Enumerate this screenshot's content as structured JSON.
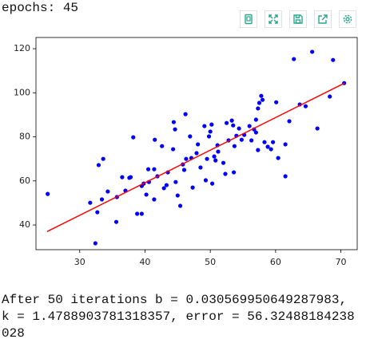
{
  "header": "epochs: 45",
  "chart_data": {
    "type": "scatter",
    "x": [
      25.1,
      32.4,
      32.7,
      31.6,
      32.9,
      33.6,
      33.4,
      34.3,
      35.6,
      35.7,
      36.5,
      37.0,
      37.6,
      37.8,
      38.2,
      38.8,
      39.5,
      39.5,
      39.8,
      40.2,
      40.5,
      40.6,
      41.4,
      41.4,
      41.5,
      41.9,
      42.6,
      42.9,
      43.3,
      43.5,
      44.3,
      44.4,
      44.6,
      44.7,
      45.0,
      45.4,
      45.8,
      46.0,
      46.2,
      46.3,
      46.9,
      47.1,
      47.3,
      47.9,
      48.1,
      48.5,
      49.1,
      49.5,
      49.3,
      49.8,
      50.0,
      50.2,
      50.3,
      50.6,
      50.8,
      51.2,
      51.1,
      52.0,
      52.3,
      52.5,
      52.8,
      53.3,
      53.5,
      53.6,
      53.7,
      54.0,
      54.4,
      54.8,
      55.2,
      56.0,
      56.3,
      56.7,
      57.0,
      57.0,
      57.3,
      57.3,
      57.5,
      57.8,
      58.0,
      58.3,
      58.8,
      59.3,
      59.6,
      60.1,
      60.4,
      61.5,
      61.5,
      62.1,
      62.8,
      63.7,
      64.6,
      65.6,
      66.4,
      68.3,
      68.8,
      70.5
    ],
    "values": [
      54.1,
      31.7,
      45.8,
      50.1,
      67.2,
      70.0,
      51.6,
      55.2,
      41.4,
      52.7,
      61.7,
      55.6,
      61.4,
      61.7,
      79.8,
      45.1,
      45.1,
      57.7,
      58.8,
      53.8,
      65.3,
      59.5,
      51.6,
      65.3,
      78.7,
      62.1,
      75.8,
      56.7,
      58.1,
      63.9,
      74.4,
      86.7,
      83.4,
      59.5,
      53.4,
      48.7,
      67.5,
      65.0,
      90.3,
      70.0,
      80.2,
      70.4,
      57.0,
      72.6,
      76.6,
      66.1,
      84.9,
      70.0,
      60.3,
      80.2,
      82.4,
      85.6,
      58.8,
      71.1,
      69.3,
      73.3,
      76.2,
      68.2,
      63.2,
      86.3,
      78.4,
      87.4,
      85.2,
      63.9,
      75.8,
      80.5,
      83.8,
      78.7,
      80.9,
      84.9,
      78.4,
      83.4,
      82.0,
      87.8,
      92.9,
      74.0,
      95.4,
      98.6,
      96.8,
      77.6,
      75.5,
      74.4,
      77.6,
      95.7,
      70.4,
      76.6,
      62.1,
      87.1,
      115.3,
      94.7,
      93.9,
      118.6,
      83.8,
      98.3,
      114.9,
      104.4
    ],
    "color": "#0000ff",
    "line": {
      "x": [
        25,
        70.5
      ],
      "values": [
        37.0,
        104.3
      ],
      "color": "#ff0000"
    },
    "xlim": [
      23.3,
      72.5
    ],
    "ylim": [
      28.8,
      125.1
    ],
    "xticks": [
      30,
      40,
      50,
      60,
      70
    ],
    "yticks": [
      40,
      60,
      80,
      100,
      120
    ],
    "grid": false
  },
  "output": [
    "After 50 iterations b = 0.030569950649287983,",
    "k = 1.4788903781318357, error = 56.32488184238",
    "028"
  ]
}
